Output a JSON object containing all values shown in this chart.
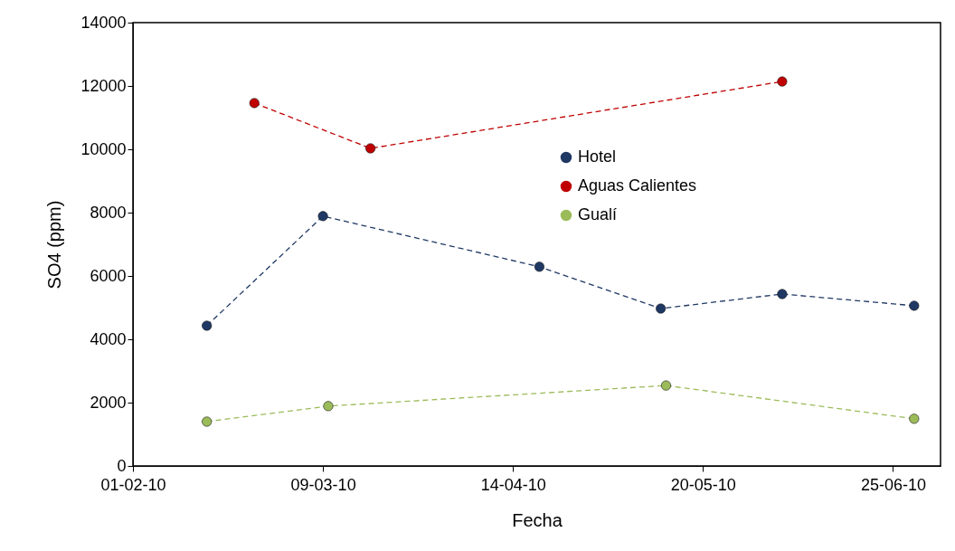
{
  "chart_data": {
    "type": "line",
    "xlabel": "Fecha",
    "ylabel": "SO4 (ppm)",
    "xlim": [
      "2010-02-01",
      "2010-07-04"
    ],
    "xticks": [
      {
        "value": "2010-02-01",
        "label": "01-02-10"
      },
      {
        "value": "2010-03-09",
        "label": "09-03-10"
      },
      {
        "value": "2010-04-14",
        "label": "14-04-10"
      },
      {
        "value": "2010-05-20",
        "label": "20-05-10"
      },
      {
        "value": "2010-06-25",
        "label": "25-06-10"
      }
    ],
    "ylim": [
      0,
      14000
    ],
    "yticks": [
      0,
      2000,
      4000,
      6000,
      8000,
      10000,
      12000,
      14000
    ],
    "grid": false,
    "legend": "center",
    "marker": "circle",
    "line_style": "dashed",
    "series": [
      {
        "name": "Hotel",
        "color": "#1f3864",
        "x": [
          "2010-02-15",
          "2010-03-09",
          "2010-04-19",
          "2010-05-12",
          "2010-06-04",
          "2010-06-29"
        ],
        "values": [
          4430,
          7890,
          6290,
          4970,
          5430,
          5060
        ]
      },
      {
        "name": "Aguas Calientes",
        "color": "#c00000",
        "x": [
          "2010-02-24",
          "2010-03-18",
          "2010-06-04"
        ],
        "values": [
          11460,
          10030,
          12140
        ]
      },
      {
        "name": "Gualí",
        "color": "#9bbb59",
        "x": [
          "2010-02-15",
          "2010-03-10",
          "2010-05-13",
          "2010-06-29"
        ],
        "values": [
          1400,
          1890,
          2540,
          1490
        ]
      }
    ]
  }
}
